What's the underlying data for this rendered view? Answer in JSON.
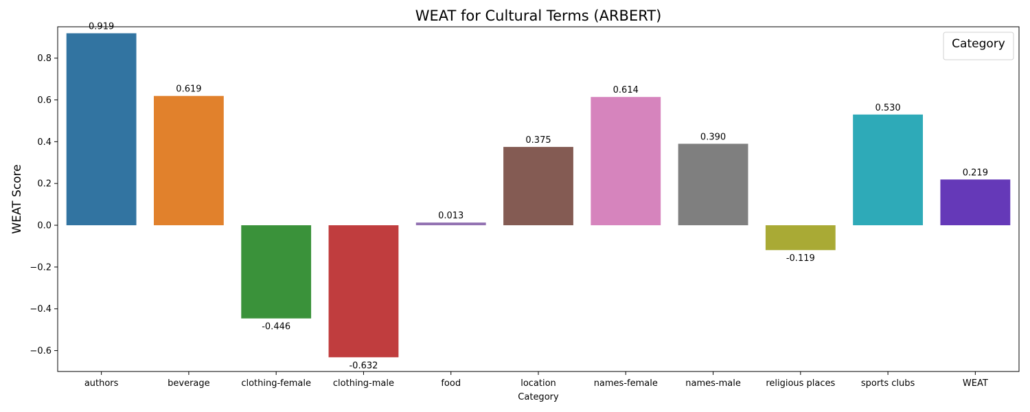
{
  "chart_data": {
    "type": "bar",
    "title": "WEAT for Cultural Terms (ARBERT)",
    "xlabel": "Category",
    "ylabel": "WEAT Score",
    "legend_title": "Category",
    "legend_position": "top-right",
    "grid": false,
    "categories": [
      "authors",
      "beverage",
      "clothing-female",
      "clothing-male",
      "food",
      "location",
      "names-female",
      "names-male",
      "religious places",
      "sports clubs",
      "WEAT"
    ],
    "values": [
      0.919,
      0.619,
      -0.446,
      -0.632,
      0.013,
      0.375,
      0.614,
      0.39,
      -0.119,
      0.53,
      0.219
    ],
    "value_labels": [
      "0.919",
      "0.619",
      "-0.446",
      "-0.632",
      "0.013",
      "0.375",
      "0.614",
      "0.390",
      "-0.119",
      "0.530",
      "0.219"
    ],
    "colors": [
      "#3274a1",
      "#e1812c",
      "#3a923a",
      "#c03d3e",
      "#9372b2",
      "#845b53",
      "#d684bd",
      "#7f7f7f",
      "#a9aa35",
      "#2eaab8",
      "#6539b8"
    ],
    "ylim": [
      -0.7,
      0.95
    ],
    "yticks": [
      -0.6,
      -0.4,
      -0.2,
      0.0,
      0.2,
      0.4,
      0.6,
      0.8
    ],
    "ytick_labels": [
      "−0.6",
      "−0.4",
      "−0.2",
      "0.0",
      "0.2",
      "0.4",
      "0.6",
      "0.8"
    ]
  }
}
